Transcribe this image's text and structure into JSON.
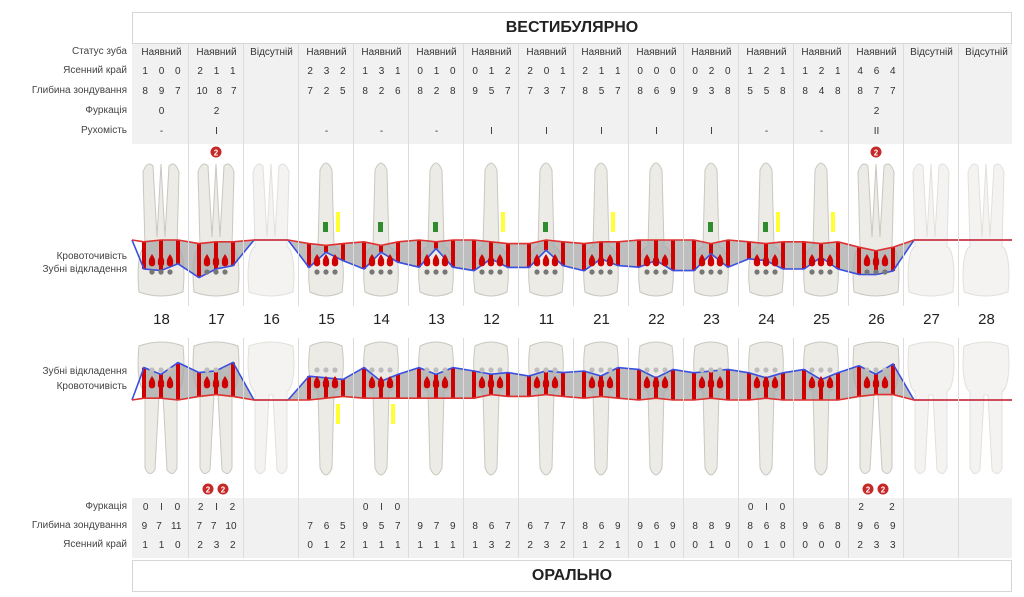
{
  "headers": {
    "top": "ВЕСТИБУЛЯРНО",
    "bottom": "ОРАЛЬНО"
  },
  "labels_top": [
    "Статус зуба",
    "Ясенний край",
    "Глибина зондування",
    "Фуркація",
    "Рухомість"
  ],
  "labels_chart_top": [
    "Кровоточивість",
    "Зубні відкладення"
  ],
  "labels_chart_bottom": [
    "Зубні відкладення",
    "Кровоточивість"
  ],
  "labels_bottom": [
    "Фуркація",
    "Глибина зондування",
    "Ясенний край"
  ],
  "teeth": [
    "18",
    "17",
    "16",
    "15",
    "14",
    "13",
    "12",
    "11",
    "21",
    "22",
    "23",
    "24",
    "25",
    "26",
    "27",
    "28"
  ],
  "status": [
    "Наявний",
    "Наявний",
    "Відсутній",
    "Наявний",
    "Наявний",
    "Наявний",
    "Наявний",
    "Наявний",
    "Наявний",
    "Наявний",
    "Наявний",
    "Наявний",
    "Наявний",
    "Наявний",
    "Відсутній",
    "Відсутній"
  ],
  "gingival_top": [
    [
      "1",
      "0",
      "0"
    ],
    [
      "2",
      "1",
      "1"
    ],
    [],
    [
      "2",
      "3",
      "2"
    ],
    [
      "1",
      "3",
      "1"
    ],
    [
      "0",
      "1",
      "0"
    ],
    [
      "0",
      "1",
      "2"
    ],
    [
      "2",
      "0",
      "1"
    ],
    [
      "2",
      "1",
      "1"
    ],
    [
      "0",
      "0",
      "0"
    ],
    [
      "0",
      "2",
      "0"
    ],
    [
      "1",
      "2",
      "1"
    ],
    [
      "1",
      "2",
      "1"
    ],
    [
      "4",
      "6",
      "4"
    ],
    [],
    []
  ],
  "depth_top": [
    [
      "8",
      "9",
      "7"
    ],
    [
      "10",
      "8",
      "7"
    ],
    [],
    [
      "7",
      "2",
      "5"
    ],
    [
      "8",
      "2",
      "6"
    ],
    [
      "8",
      "2",
      "8"
    ],
    [
      "9",
      "5",
      "7"
    ],
    [
      "7",
      "3",
      "7"
    ],
    [
      "8",
      "5",
      "7"
    ],
    [
      "8",
      "6",
      "9"
    ],
    [
      "9",
      "3",
      "8"
    ],
    [
      "5",
      "5",
      "8"
    ],
    [
      "8",
      "4",
      "8"
    ],
    [
      "8",
      "7",
      "7"
    ],
    [],
    []
  ],
  "furcation_top": [
    "0",
    "2",
    "",
    "",
    "",
    "",
    "",
    "",
    "",
    "",
    "",
    "",
    "",
    "2",
    "",
    ""
  ],
  "mobility": [
    "-",
    "I",
    "",
    "-",
    "-",
    "-",
    "I",
    "I",
    "I",
    "I",
    "I",
    "-",
    "-",
    "II",
    "",
    ""
  ],
  "furcation_bottom": [
    [
      "0",
      "I",
      "0"
    ],
    [
      "2",
      "I",
      "2"
    ],
    [],
    [],
    [
      "0",
      "I",
      "0"
    ],
    [],
    [],
    [],
    [],
    [],
    [],
    [
      "0",
      "I",
      "0"
    ],
    [],
    [
      "2",
      "",
      "2"
    ],
    [],
    []
  ],
  "depth_bottom": [
    [
      "9",
      "7",
      "11"
    ],
    [
      "7",
      "7",
      "10"
    ],
    [],
    [
      "7",
      "6",
      "5"
    ],
    [
      "9",
      "5",
      "7"
    ],
    [
      "9",
      "7",
      "9"
    ],
    [
      "8",
      "6",
      "7"
    ],
    [
      "6",
      "7",
      "7"
    ],
    [
      "8",
      "6",
      "9"
    ],
    [
      "9",
      "6",
      "9"
    ],
    [
      "8",
      "8",
      "9"
    ],
    [
      "8",
      "6",
      "8"
    ],
    [
      "9",
      "6",
      "8"
    ],
    [
      "9",
      "6",
      "9"
    ],
    [],
    []
  ],
  "gingival_bottom": [
    [
      "1",
      "1",
      "0"
    ],
    [
      "2",
      "3",
      "2"
    ],
    [],
    [
      "0",
      "1",
      "2"
    ],
    [
      "1",
      "1",
      "1"
    ],
    [
      "1",
      "1",
      "1"
    ],
    [
      "1",
      "3",
      "2"
    ],
    [
      "2",
      "3",
      "2"
    ],
    [
      "1",
      "2",
      "1"
    ],
    [
      "0",
      "1",
      "0"
    ],
    [
      "0",
      "1",
      "0"
    ],
    [
      "0",
      "1",
      "0"
    ],
    [
      "0",
      "0",
      "0"
    ],
    [
      "2",
      "3",
      "3"
    ],
    [],
    []
  ],
  "furcation_badges_top": [
    "",
    "2",
    "",
    "",
    "",
    "",
    "",
    "",
    "",
    "",
    "",
    "",
    "",
    "2",
    "",
    ""
  ],
  "furcation_badges_bottom": [
    [
      "",
      ""
    ],
    [
      "2",
      "2"
    ],
    [
      "",
      ""
    ],
    [
      "",
      ""
    ],
    [
      "",
      ""
    ],
    [
      "",
      ""
    ],
    [
      "",
      ""
    ],
    [
      "",
      ""
    ],
    [
      "",
      ""
    ],
    [
      "",
      ""
    ],
    [
      "",
      ""
    ],
    [
      "",
      ""
    ],
    [
      "",
      ""
    ],
    [
      "2",
      "2"
    ],
    [
      "",
      ""
    ],
    [
      "",
      ""
    ]
  ],
  "colors": {
    "pocket_line": "#3a4fe0",
    "margin_line": "#e03030",
    "fill": "#a8a8a8",
    "depth_bar": "#d00000",
    "bleed": "#d00000",
    "plaque": "#777777",
    "recession_yellow": "#ffff33",
    "recession_green": "#2e8b2e"
  }
}
